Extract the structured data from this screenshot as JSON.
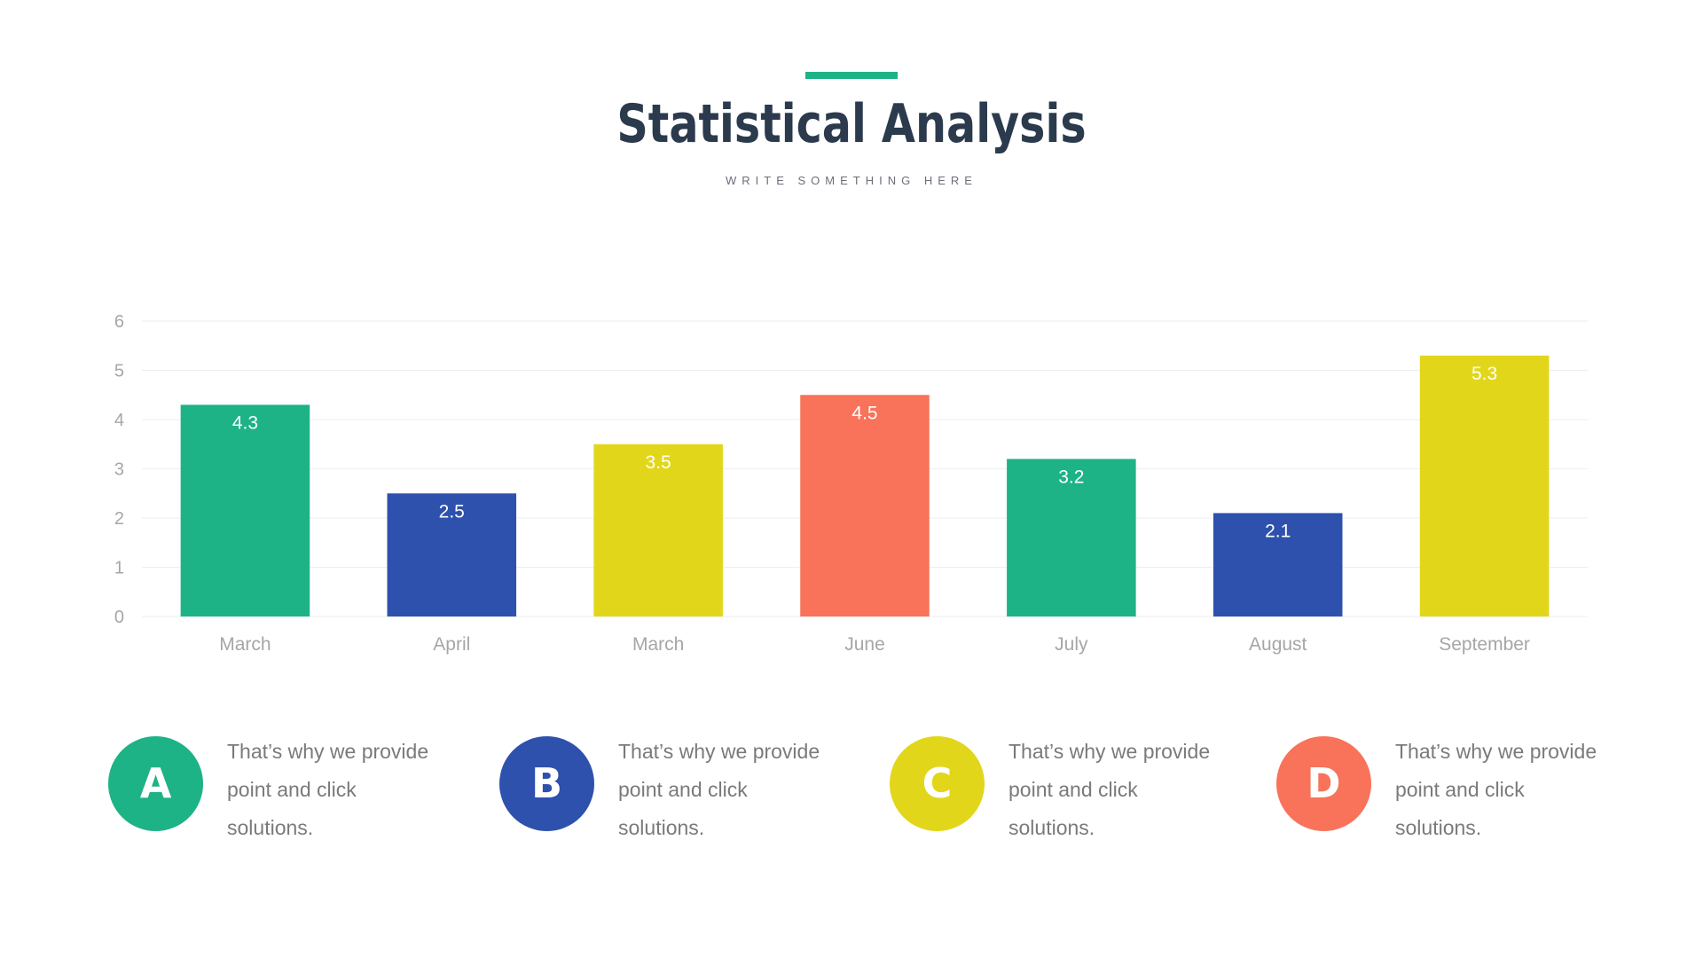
{
  "slide": {
    "title": "Statistical Analysis",
    "subtitle": "WRITE SOMETHING HERE",
    "accent_color": "#1db387"
  },
  "chart_data": {
    "type": "bar",
    "categories": [
      "March",
      "April",
      "March",
      "June",
      "July",
      "August",
      "September"
    ],
    "values": [
      4.3,
      2.5,
      3.5,
      4.5,
      3.2,
      2.1,
      5.3
    ],
    "data_labels": [
      "4.3",
      "2.5",
      "3.5",
      "4.5",
      "3.2",
      "2.1",
      "5.3"
    ],
    "bar_colors": [
      "#1db387",
      "#2e51ad",
      "#e2d61b",
      "#f8735a",
      "#1db387",
      "#2e51ad",
      "#e2d61b"
    ],
    "yticks": [
      "0",
      "1",
      "2",
      "3",
      "4",
      "5",
      "6"
    ],
    "ylim": [
      0,
      6
    ],
    "grid": true,
    "title": "",
    "xlabel": "",
    "ylabel": ""
  },
  "legend": [
    {
      "letter": "A",
      "color": "#1db387",
      "text": "That’s why we provide point and click solutions."
    },
    {
      "letter": "B",
      "color": "#2e51ad",
      "text": "That’s why we provide point and click solutions."
    },
    {
      "letter": "C",
      "color": "#e2d61b",
      "text": "That’s why we provide point and click solutions."
    },
    {
      "letter": "D",
      "color": "#f8735a",
      "text": "That’s why we provide point and click solutions."
    }
  ]
}
